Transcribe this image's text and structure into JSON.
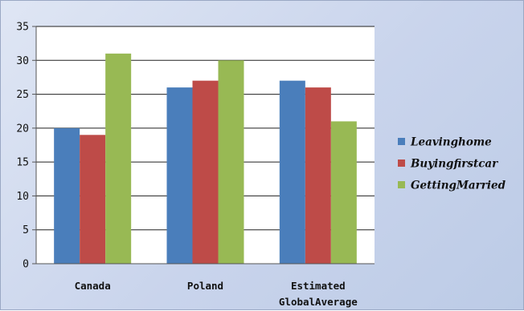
{
  "chart_data": {
    "type": "bar",
    "title": "",
    "xlabel": "",
    "ylabel": "",
    "categories": [
      [
        "Canada"
      ],
      [
        "Poland"
      ],
      [
        "Estimated",
        "GlobalAverage"
      ]
    ],
    "series": [
      {
        "name": "Leavinghome",
        "color": "#4a7ebb",
        "values": [
          20,
          26,
          27
        ]
      },
      {
        "name": "Buyingfirstcar",
        "color": "#be4b48",
        "values": [
          19,
          27,
          26
        ]
      },
      {
        "name": "GettingMarried",
        "color": "#98b954",
        "values": [
          31,
          30,
          21
        ]
      }
    ],
    "ylim": [
      0,
      35
    ],
    "yticks": [
      0,
      5,
      10,
      15,
      20,
      25,
      30,
      35
    ],
    "grid": true,
    "legend_position": "right"
  }
}
